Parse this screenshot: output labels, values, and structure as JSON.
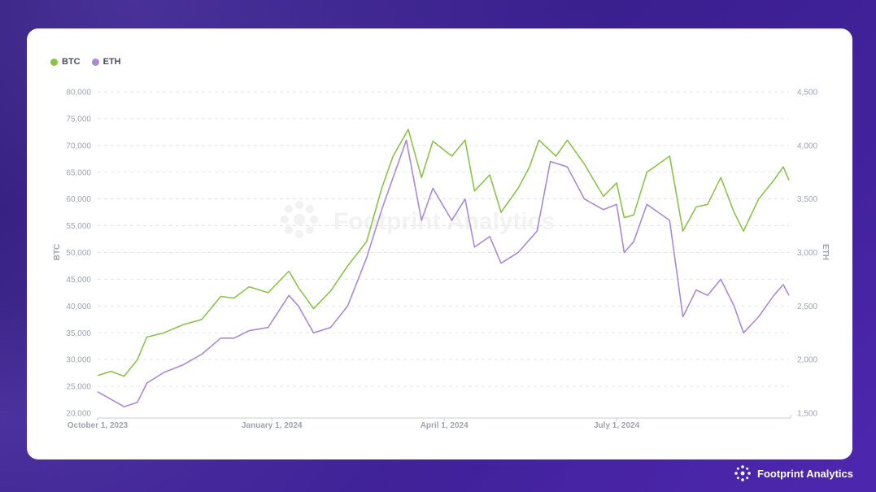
{
  "brand": {
    "name": "Footprint Analytics"
  },
  "watermark": {
    "text": "Footprint Analytics"
  },
  "colors": {
    "btc": "#8bc34a",
    "eth": "#a98ad6",
    "grid": "#e3e5ea",
    "axis_text": "#9ca3b0",
    "background": "#3a1f8f"
  },
  "chart_data": {
    "type": "line",
    "legend": {
      "position": "top-left",
      "entries": [
        "BTC",
        "ETH"
      ]
    },
    "x_axis": {
      "type": "date",
      "start": "2023-10-01",
      "end": "2024-09-30",
      "ticks": [
        {
          "date": "2023-10-01",
          "label": "October 1, 2023"
        },
        {
          "date": "2024-01-01",
          "label": "January 1, 2024"
        },
        {
          "date": "2024-04-01",
          "label": "April 1, 2024"
        },
        {
          "date": "2024-07-01",
          "label": "July 1, 2024"
        }
      ]
    },
    "y_left": {
      "label": "BTC",
      "min": 20000,
      "max": 80000,
      "ticks": [
        "20,000",
        "25,000",
        "30,000",
        "35,000",
        "40,000",
        "45,000",
        "50,000",
        "55,000",
        "60,000",
        "65,000",
        "70,000",
        "75,000",
        "80,000"
      ]
    },
    "y_right": {
      "label": "ETH",
      "min": 1500,
      "max": 4500,
      "ticks": [
        "1,500",
        "2,000",
        "2,500",
        "3,000",
        "3,500",
        "4,000",
        "4,500"
      ]
    },
    "grid": true,
    "series": [
      {
        "name": "BTC",
        "axis": "left",
        "points": [
          [
            "2023-10-01",
            27000
          ],
          [
            "2023-10-08",
            27800
          ],
          [
            "2023-10-15",
            26900
          ],
          [
            "2023-10-22",
            30000
          ],
          [
            "2023-10-27",
            34200
          ],
          [
            "2023-11-05",
            35000
          ],
          [
            "2023-11-15",
            36500
          ],
          [
            "2023-11-25",
            37500
          ],
          [
            "2023-12-05",
            41800
          ],
          [
            "2023-12-12",
            41500
          ],
          [
            "2023-12-20",
            43600
          ],
          [
            "2023-12-30",
            42500
          ],
          [
            "2024-01-10",
            46500
          ],
          [
            "2024-01-15",
            43500
          ],
          [
            "2024-01-23",
            39500
          ],
          [
            "2024-02-01",
            42800
          ],
          [
            "2024-02-10",
            47500
          ],
          [
            "2024-02-20",
            52000
          ],
          [
            "2024-02-28",
            62000
          ],
          [
            "2024-03-05",
            68000
          ],
          [
            "2024-03-13",
            73000
          ],
          [
            "2024-03-20",
            64000
          ],
          [
            "2024-03-26",
            70800
          ],
          [
            "2024-04-05",
            68000
          ],
          [
            "2024-04-12",
            71000
          ],
          [
            "2024-04-17",
            61500
          ],
          [
            "2024-04-25",
            64500
          ],
          [
            "2024-05-01",
            57500
          ],
          [
            "2024-05-10",
            62000
          ],
          [
            "2024-05-16",
            66000
          ],
          [
            "2024-05-21",
            71000
          ],
          [
            "2024-05-30",
            68000
          ],
          [
            "2024-06-05",
            71000
          ],
          [
            "2024-06-14",
            66500
          ],
          [
            "2024-06-24",
            60500
          ],
          [
            "2024-07-01",
            63000
          ],
          [
            "2024-07-05",
            56500
          ],
          [
            "2024-07-10",
            57000
          ],
          [
            "2024-07-17",
            65000
          ],
          [
            "2024-07-29",
            68000
          ],
          [
            "2024-08-05",
            54000
          ],
          [
            "2024-08-12",
            58500
          ],
          [
            "2024-08-18",
            59000
          ],
          [
            "2024-08-25",
            64000
          ],
          [
            "2024-09-01",
            57500
          ],
          [
            "2024-09-06",
            54000
          ],
          [
            "2024-09-14",
            60000
          ],
          [
            "2024-09-22",
            63500
          ],
          [
            "2024-09-27",
            66000
          ],
          [
            "2024-09-30",
            63500
          ]
        ]
      },
      {
        "name": "ETH",
        "axis": "right",
        "points": [
          [
            "2023-10-01",
            1700
          ],
          [
            "2023-10-08",
            1630
          ],
          [
            "2023-10-15",
            1560
          ],
          [
            "2023-10-22",
            1600
          ],
          [
            "2023-10-27",
            1780
          ],
          [
            "2023-11-05",
            1880
          ],
          [
            "2023-11-15",
            1950
          ],
          [
            "2023-11-25",
            2050
          ],
          [
            "2023-12-05",
            2200
          ],
          [
            "2023-12-12",
            2200
          ],
          [
            "2023-12-20",
            2270
          ],
          [
            "2023-12-30",
            2300
          ],
          [
            "2024-01-10",
            2600
          ],
          [
            "2024-01-15",
            2500
          ],
          [
            "2024-01-23",
            2250
          ],
          [
            "2024-02-01",
            2300
          ],
          [
            "2024-02-10",
            2500
          ],
          [
            "2024-02-20",
            2950
          ],
          [
            "2024-02-28",
            3400
          ],
          [
            "2024-03-05",
            3700
          ],
          [
            "2024-03-12",
            4050
          ],
          [
            "2024-03-20",
            3300
          ],
          [
            "2024-03-26",
            3600
          ],
          [
            "2024-04-05",
            3300
          ],
          [
            "2024-04-12",
            3500
          ],
          [
            "2024-04-17",
            3050
          ],
          [
            "2024-04-25",
            3150
          ],
          [
            "2024-05-01",
            2900
          ],
          [
            "2024-05-10",
            3000
          ],
          [
            "2024-05-20",
            3200
          ],
          [
            "2024-05-27",
            3850
          ],
          [
            "2024-06-05",
            3800
          ],
          [
            "2024-06-14",
            3500
          ],
          [
            "2024-06-24",
            3400
          ],
          [
            "2024-07-01",
            3450
          ],
          [
            "2024-07-05",
            3000
          ],
          [
            "2024-07-10",
            3100
          ],
          [
            "2024-07-17",
            3450
          ],
          [
            "2024-07-29",
            3300
          ],
          [
            "2024-08-05",
            2400
          ],
          [
            "2024-08-12",
            2650
          ],
          [
            "2024-08-18",
            2600
          ],
          [
            "2024-08-25",
            2750
          ],
          [
            "2024-09-01",
            2500
          ],
          [
            "2024-09-06",
            2250
          ],
          [
            "2024-09-14",
            2400
          ],
          [
            "2024-09-22",
            2600
          ],
          [
            "2024-09-27",
            2700
          ],
          [
            "2024-09-30",
            2600
          ]
        ]
      }
    ]
  }
}
